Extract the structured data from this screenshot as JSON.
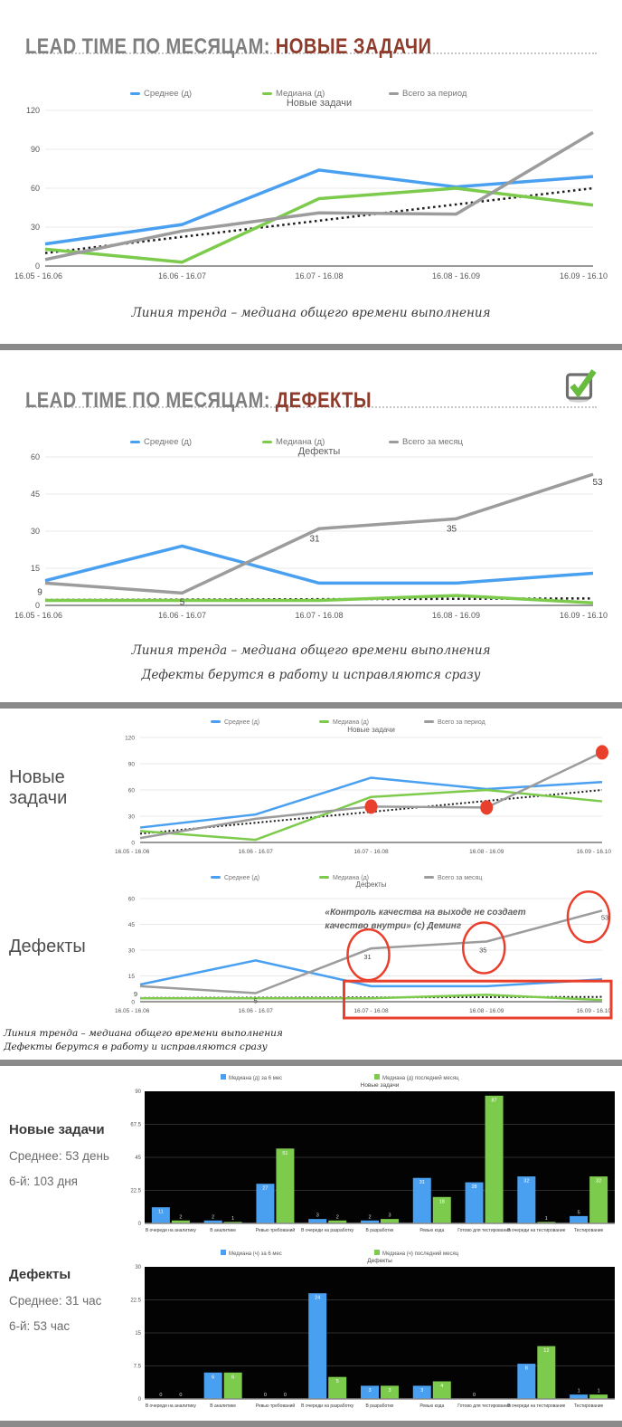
{
  "accent_colors": {
    "blue": "#4AA0F0",
    "green": "#7DCB4D",
    "grey": "#9C9C9C",
    "red": "#E8402C",
    "title_grey": "#7F7F7F",
    "title_red": "#8E3B2B"
  },
  "sections": {
    "new_tasks": {
      "title_prefix": "LEAD TIME ПО МЕСЯЦАМ:",
      "title_highlight": "НОВЫЕ ЗАДАЧИ",
      "caption": "Линия тренда – медиана общего времени выполнения"
    },
    "defects": {
      "title_prefix": "LEAD TIME ПО МЕСЯЦАМ:",
      "title_highlight": "ДЕФЕКТЫ",
      "checkbox_icon": "checked-checkbox",
      "captions": [
        "Линия тренда – медиана общего времени выполнения",
        "Дефекты берутся в работу и исправляются сразу"
      ]
    },
    "annotated": {
      "row1_label": "Новые задачи",
      "row2_label": "Дефекты",
      "captions": [
        "Линия тренда – медиана общего времени выполнения",
        "Дефекты берутся в работу и исправляются сразу"
      ]
    },
    "bars": {
      "new_tasks": {
        "heading": "Новые задачи",
        "avg": "Среднее: 53 день",
        "p6": "6-й: 103 дня"
      },
      "defects": {
        "heading": "Дефекты",
        "avg": "Среднее: 31 час",
        "p6": "6-й: 53 час"
      }
    }
  },
  "chart_data": [
    {
      "id": "lead-time-new-tasks",
      "type": "line",
      "title": "Новые задачи",
      "categories": [
        "16.05 - 16.06",
        "16.06 - 16.07",
        "16.07 - 16.08",
        "16.08 - 16.09",
        "16.09 - 16.10"
      ],
      "series": [
        {
          "name": "Среднее (д)",
          "color_key": "blue",
          "values": [
            17,
            32,
            74,
            61,
            69
          ]
        },
        {
          "name": "Медиана (д)",
          "color_key": "green",
          "values": [
            13,
            3,
            52,
            60,
            47
          ]
        },
        {
          "name": "Всего за период",
          "color_key": "grey",
          "values": [
            5,
            27,
            41,
            40,
            103
          ]
        }
      ],
      "trend": [
        10,
        60
      ],
      "ylim": [
        0,
        120
      ],
      "yticks": [
        0,
        30,
        60,
        90,
        120
      ],
      "legend_position": "top"
    },
    {
      "id": "lead-time-defects",
      "type": "line",
      "title": "Дефекты",
      "categories": [
        "16.05 - 16.06",
        "16.06 - 16.07",
        "16.07 - 16.08",
        "16.08 - 16.09",
        "16.09 - 16.10"
      ],
      "series": [
        {
          "name": "Среднее (д)",
          "color_key": "blue",
          "values": [
            10,
            24,
            9,
            9,
            13
          ]
        },
        {
          "name": "Медиана (д)",
          "color_key": "green",
          "values": [
            2,
            2,
            2,
            4,
            1
          ]
        },
        {
          "name": "Всего за месяц",
          "color_key": "grey",
          "values": [
            9,
            5,
            31,
            35,
            53
          ],
          "data_labels": true
        }
      ],
      "trend": [
        2.2,
        2.8
      ],
      "ylim": [
        0,
        60
      ],
      "yticks": [
        0,
        15,
        30,
        45,
        60
      ],
      "legend_position": "top"
    },
    {
      "id": "lead-time-new-tasks-annotated",
      "type": "line",
      "title": "Новые задачи",
      "categories": [
        "16.05 - 16.06",
        "16.06 - 16.07",
        "16.07 - 16.08",
        "16.08 - 16.09",
        "16.09 - 16.10"
      ],
      "series": [
        {
          "name": "Среднее (д)",
          "color_key": "blue",
          "values": [
            17,
            32,
            74,
            61,
            69
          ]
        },
        {
          "name": "Медиана (д)",
          "color_key": "green",
          "values": [
            13,
            3,
            52,
            60,
            47
          ]
        },
        {
          "name": "Всего за период",
          "color_key": "grey",
          "values": [
            5,
            27,
            41,
            40,
            103
          ]
        }
      ],
      "trend": [
        10,
        60
      ],
      "ylim": [
        0,
        120
      ],
      "yticks": [
        0,
        30,
        60,
        90,
        120
      ],
      "annotations": {
        "point_markers": [
          2,
          3,
          4
        ]
      }
    },
    {
      "id": "lead-time-defects-annotated",
      "type": "line",
      "title": "Дефекты",
      "categories": [
        "16.05 - 16.06",
        "16.06 - 16.07",
        "16.07 - 16.08",
        "16.08 - 16.09",
        "16.09 - 16.10"
      ],
      "series": [
        {
          "name": "Среднее (д)",
          "color_key": "blue",
          "values": [
            10,
            24,
            9,
            9,
            13
          ]
        },
        {
          "name": "Медиана (д)",
          "color_key": "green",
          "values": [
            2,
            2,
            2,
            4,
            1
          ]
        },
        {
          "name": "Всего за месяц",
          "color_key": "grey",
          "values": [
            9,
            5,
            31,
            35,
            53
          ],
          "data_labels": true
        }
      ],
      "trend": [
        2.2,
        2.8
      ],
      "ylim": [
        0,
        60
      ],
      "yticks": [
        0,
        15,
        30,
        45,
        60
      ],
      "annotations": {
        "circled_labels": [
          2,
          3,
          4
        ],
        "highlight_rect": true,
        "quote_lines": [
          "«Контроль качества на выходе не создает",
          "качество внутри» (с) Деминг"
        ]
      }
    },
    {
      "id": "median-by-stage-new-tasks",
      "type": "bar",
      "title": "Новые задачи",
      "categories": [
        "В очереди на аналитику",
        "В аналитике",
        "Ревью требований",
        "В очереди на разработку",
        "В разработке",
        "Ревью кода",
        "Готово для тестирования",
        "В очереди на тестирование",
        "Тестирование"
      ],
      "series": [
        {
          "name": "Медиана (д) за 6 мес",
          "color_key": "blue",
          "values": [
            11,
            2,
            27,
            3,
            2,
            31,
            28,
            32,
            5
          ]
        },
        {
          "name": "Медиана (д) последний месяц",
          "color_key": "green",
          "values": [
            2,
            1,
            51,
            2,
            3,
            18,
            87,
            1,
            32
          ]
        }
      ],
      "ylim": [
        0,
        90
      ],
      "yticks": [
        0,
        22.5,
        45,
        67.5,
        90
      ]
    },
    {
      "id": "median-by-stage-defects",
      "type": "bar",
      "title": "Дефекты",
      "categories": [
        "В очереди на аналитику",
        "В аналитике",
        "Ревью требований",
        "В очереди на разработку",
        "В разработке",
        "Ревью кода",
        "Готово для тестирования",
        "В очереди на тестирование",
        "Тестирование"
      ],
      "series": [
        {
          "name": "Медиана (ч) за 6 мес",
          "color_key": "blue",
          "values": [
            0,
            6,
            0,
            24,
            3,
            3,
            0,
            8,
            1
          ]
        },
        {
          "name": "Медиана (ч) последний месяц",
          "color_key": "green",
          "values": [
            0,
            6,
            0,
            5,
            3,
            4,
            null,
            12,
            1
          ]
        }
      ],
      "ylim": [
        0,
        30
      ],
      "yticks": [
        0,
        7.5,
        15,
        22.5,
        30
      ]
    }
  ]
}
